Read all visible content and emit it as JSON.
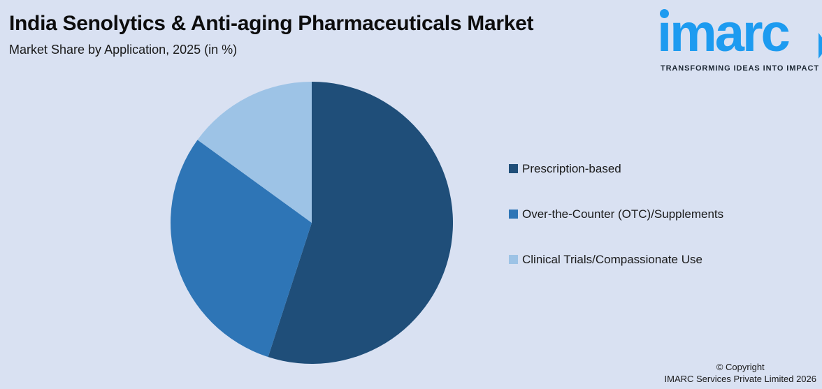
{
  "page": {
    "background_color": "#d9e1f2"
  },
  "header": {
    "title": "India Senolytics & Anti-aging Pharmaceuticals Market",
    "subtitle": "Market Share by Application, 2025 (in %)"
  },
  "logo": {
    "brand": "imarc",
    "brand_display": "ımarc",
    "tagline": "TRANSFORMING IDEAS INTO IMPACT",
    "brand_color": "#1d9bf0",
    "tagline_color": "#1c2733"
  },
  "chart_data": {
    "type": "pie",
    "title": "India Senolytics & Anti-aging Pharmaceuticals Market",
    "subtitle": "Market Share by Application, 2025 (in %)",
    "unit": "%",
    "year": "2025",
    "start_angle_deg": -90,
    "direction": "clockwise",
    "legend_position": "right",
    "slices": [
      {
        "label": "Prescription-based",
        "value": 55,
        "color": "#1f4e79"
      },
      {
        "label": "Over-the-Counter (OTC)/Supplements",
        "value": 30,
        "color": "#2e75b6"
      },
      {
        "label": "Clinical Trials/Compassionate Use",
        "value": 15,
        "color": "#9dc3e6"
      }
    ]
  },
  "footer": {
    "copyright_line1": "© Copyright",
    "copyright_line2": "IMARC Services Private Limited 2026"
  }
}
